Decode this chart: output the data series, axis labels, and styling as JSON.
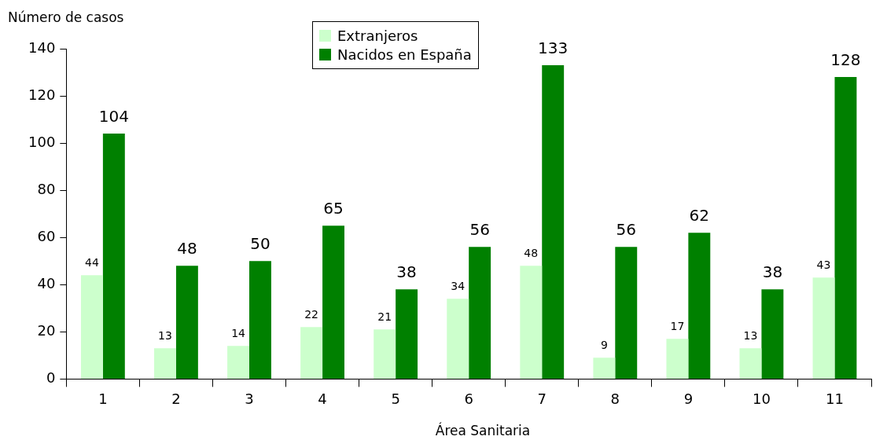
{
  "chart_data": {
    "type": "bar",
    "xlabel": "Área Sanitaria",
    "ylabel": "Número de casos",
    "categories": [
      "1",
      "2",
      "3",
      "4",
      "5",
      "6",
      "7",
      "8",
      "9",
      "10",
      "11"
    ],
    "series": [
      {
        "name": "Extranjeros",
        "color": "#ccffcc",
        "values": [
          44,
          13,
          14,
          22,
          21,
          34,
          48,
          9,
          17,
          13,
          43
        ]
      },
      {
        "name": "Nacidos en España",
        "color": "#008000",
        "values": [
          104,
          48,
          50,
          65,
          38,
          56,
          133,
          56,
          62,
          38,
          128
        ]
      }
    ],
    "ylim": [
      0,
      140
    ],
    "yticks": [
      0,
      20,
      40,
      60,
      80,
      100,
      120,
      140
    ],
    "grid": false,
    "legend": "top",
    "data_labels": true
  }
}
